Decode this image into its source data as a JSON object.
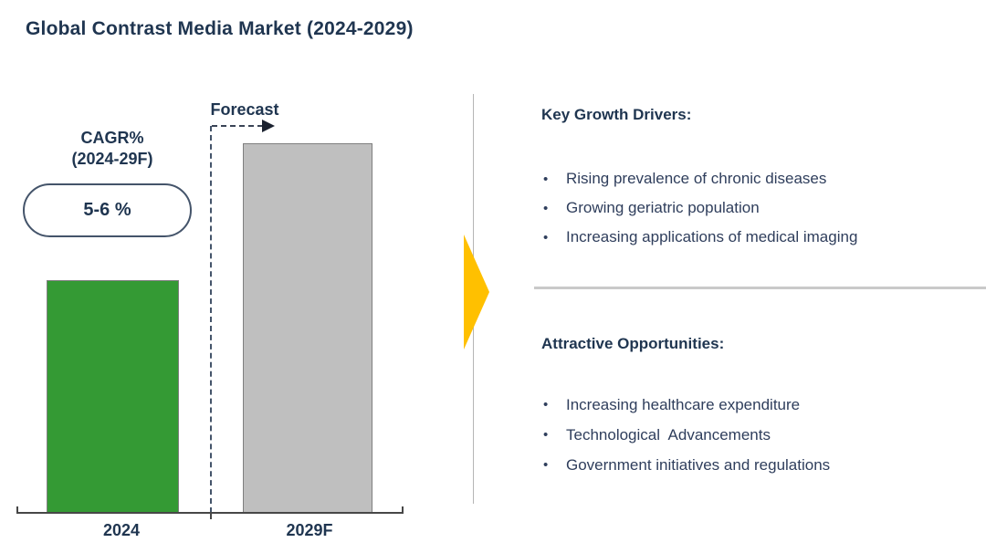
{
  "title": "Global Contrast Media Market (2024-2029)",
  "chart": {
    "forecast_label": "Forecast",
    "cagr_title_line1": "CAGR%",
    "cagr_title_line2": "(2024-29F)",
    "cagr_value": "5-6 %",
    "x_labels": [
      "2024",
      "2029F"
    ]
  },
  "right_panel": {
    "growth_drivers": {
      "heading": "Key Growth Drivers:",
      "items": [
        "Rising prevalence of chronic diseases",
        "Growing geriatric population",
        "Increasing applications of medical imaging"
      ]
    },
    "opportunities": {
      "heading": "Attractive Opportunities:",
      "items": [
        "Increasing healthcare expenditure",
        "Technological  Advancements",
        "Government initiatives and regulations"
      ]
    }
  },
  "icons": {
    "bullet": "•"
  },
  "colors": {
    "navy_text": "#1f3550",
    "bullet_text": "#2f3e5c",
    "bar_2024_green": "#349a34",
    "bar_2029_gray": "#bfbfbf",
    "bar_border_gray": "#7f7f7f",
    "dashed_line_navy": "#44546a",
    "axis_gray": "#474747",
    "arrow_gold": "#ffc000",
    "divider_gray": "#c9c9c9",
    "separator_gray": "#b5b5b5"
  },
  "chart_data": {
    "type": "bar",
    "title": "Global Contrast Media Market (2024-2029)",
    "categories": [
      "2024",
      "2029F"
    ],
    "values_relative_pct_of_max": [
      63,
      100
    ],
    "value_axis": "none",
    "grid": "off",
    "legend_position": "none",
    "bar_colors": [
      "#349a34",
      "#bfbfbf"
    ],
    "cagr_2024_29f": "5-6 %",
    "forecast_label": "Forecast"
  }
}
